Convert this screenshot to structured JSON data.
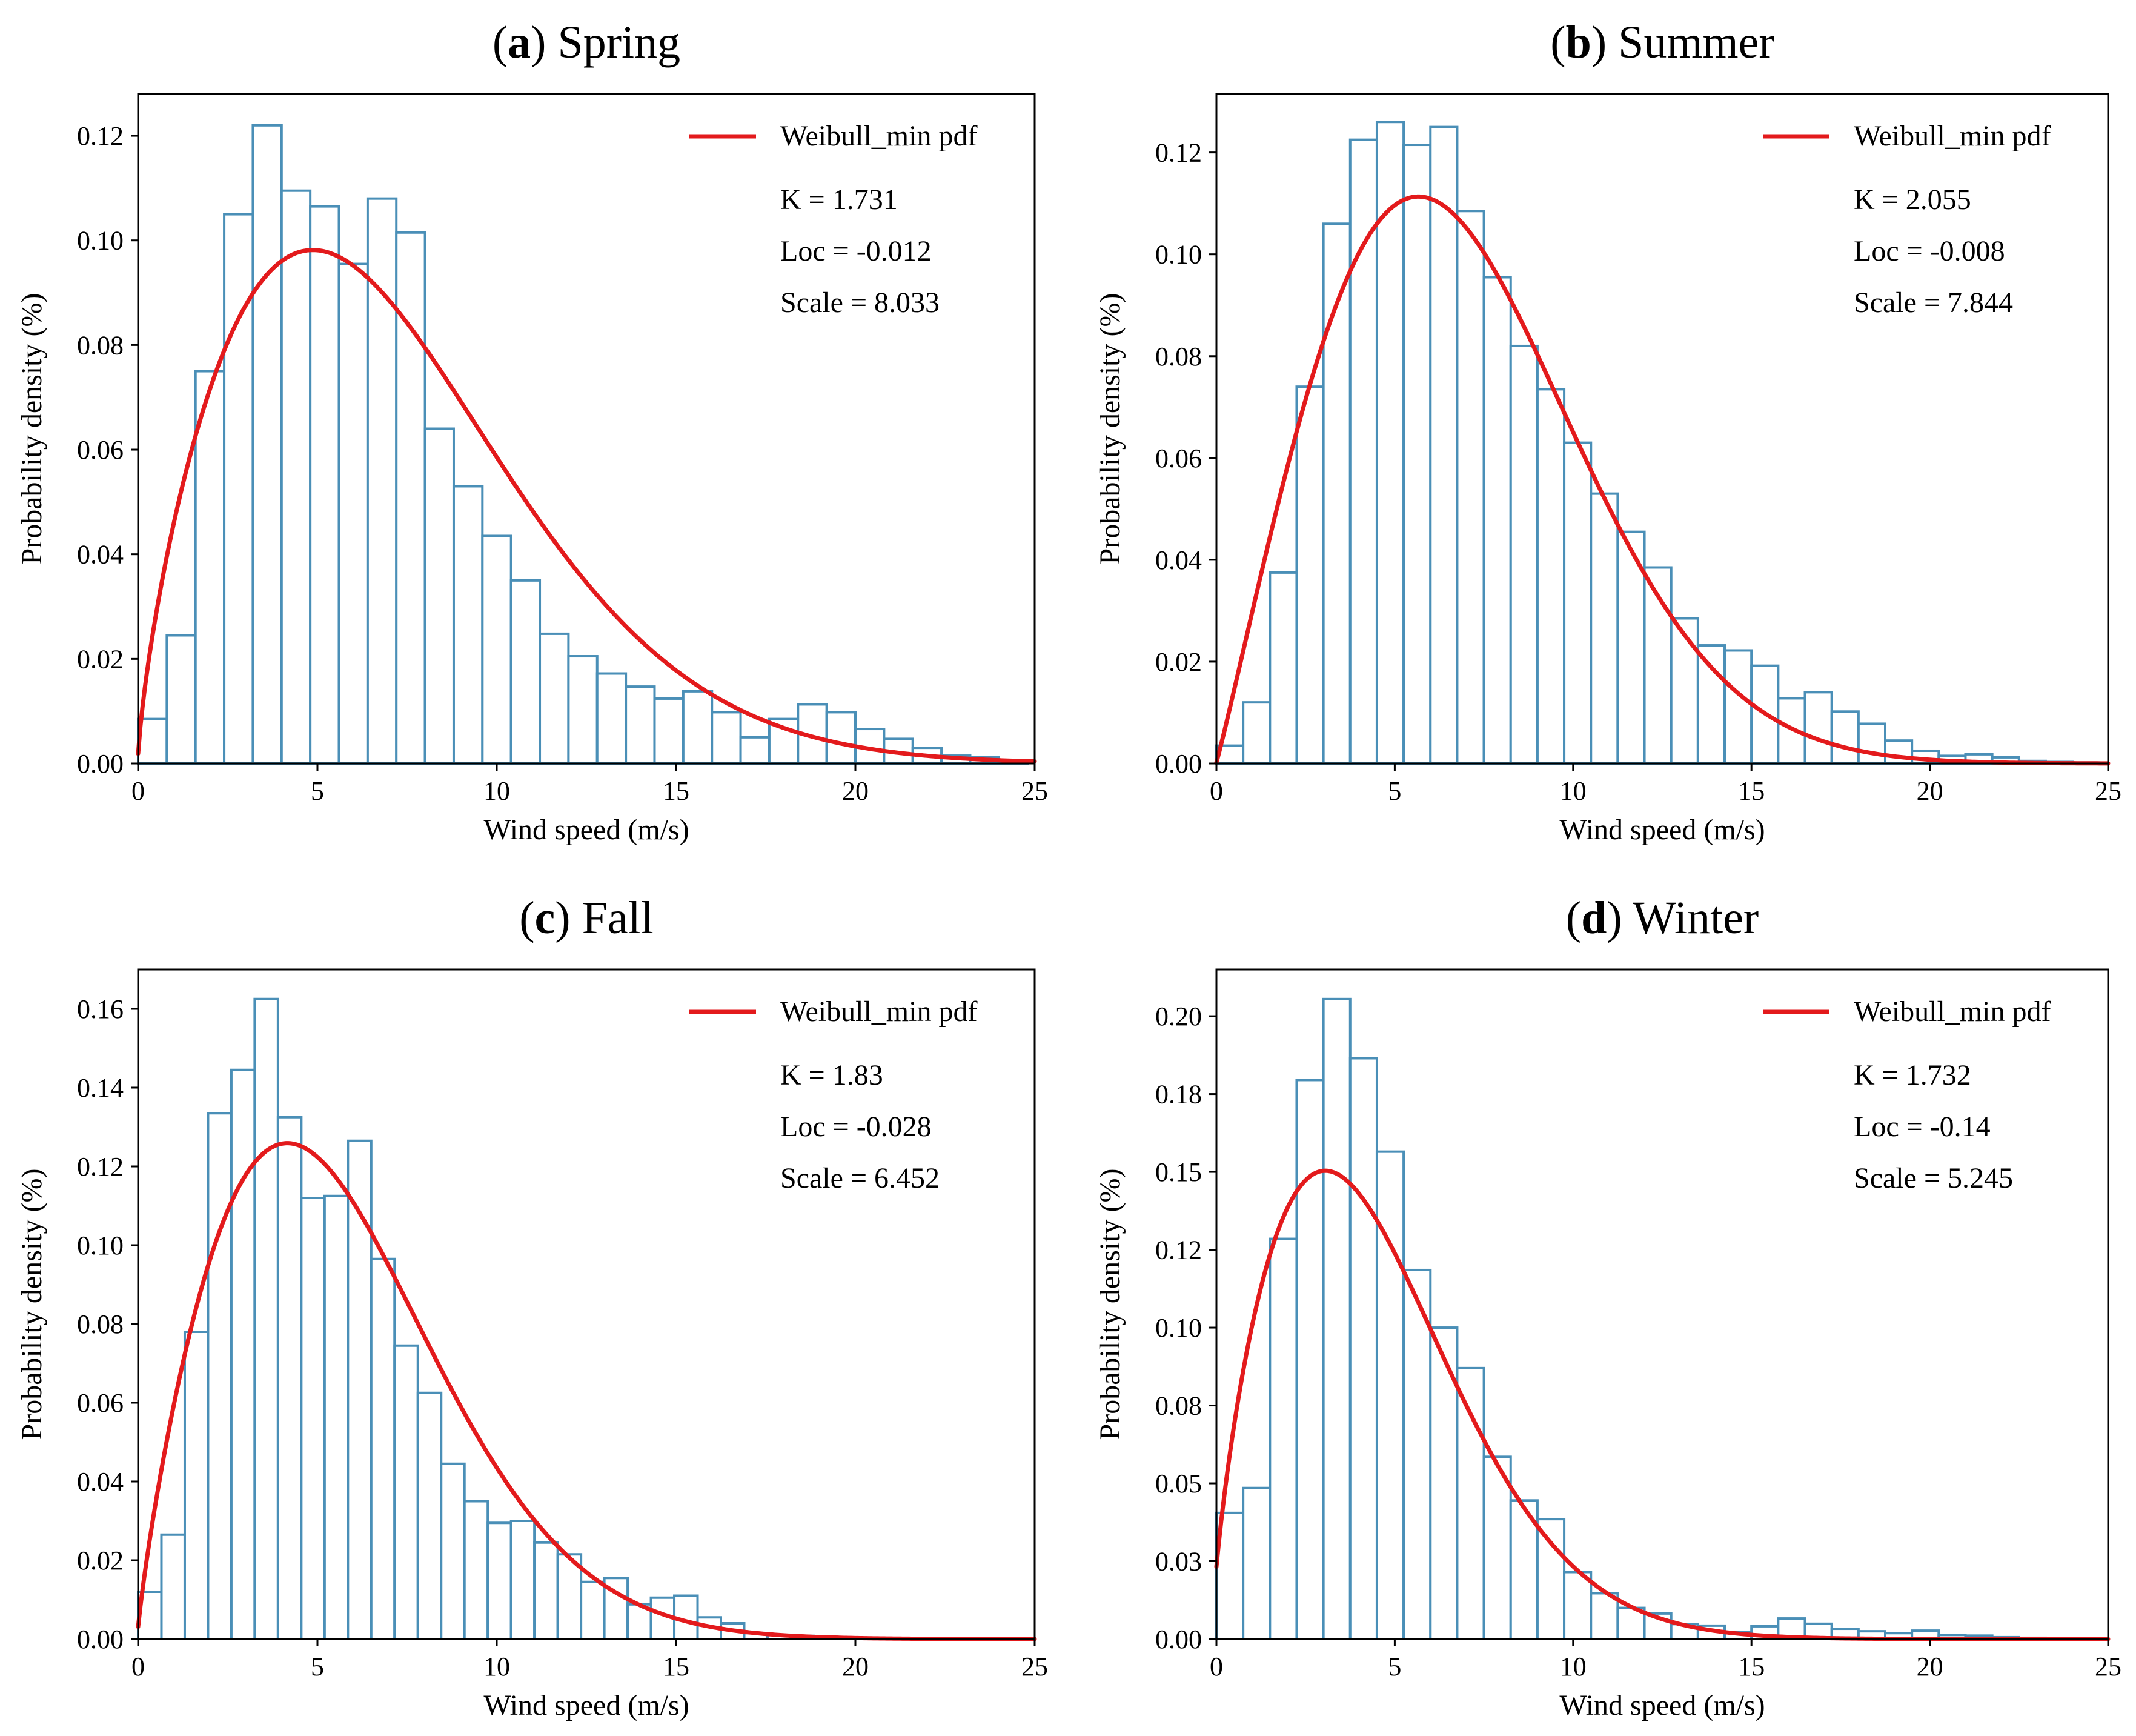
{
  "chart_data": [
    {
      "type": "bar",
      "title_letter": "a",
      "title_text": "Spring",
      "xlabel": "Wind speed (m/s)",
      "ylabel": "Probability density (%)",
      "xlim": [
        0,
        25
      ],
      "ylim": [
        0,
        0.128
      ],
      "xticks": [
        0,
        5,
        10,
        15,
        20,
        25
      ],
      "yticks": [
        0.0,
        0.02,
        0.04,
        0.06,
        0.08,
        0.1,
        0.12
      ],
      "ytick_labels": [
        "0.00",
        "0.02",
        "0.04",
        "0.06",
        "0.08",
        "0.10",
        "0.12"
      ],
      "grid": false,
      "legend": {
        "label": "Weibull_min pdf",
        "placement": "top-right"
      },
      "annotations": [
        "K = 1.731",
        "Loc = -0.012",
        "Scale = 8.033"
      ],
      "bin_start": 0,
      "bin_width": 0.8,
      "hist_values": [
        0.0085,
        0.0245,
        0.075,
        0.105,
        0.122,
        0.1095,
        0.1065,
        0.0955,
        0.108,
        0.1015,
        0.064,
        0.053,
        0.0435,
        0.035,
        0.0248,
        0.0205,
        0.0172,
        0.0147,
        0.0124,
        0.0138,
        0.0098,
        0.005,
        0.0085,
        0.0113,
        0.0098,
        0.0066,
        0.0047,
        0.003,
        0.0015,
        0.0012,
        0.0005
      ],
      "weibull": {
        "k": 1.731,
        "loc": -0.012,
        "scale": 8.033
      }
    },
    {
      "type": "bar",
      "title_letter": "b",
      "title_text": "Summer",
      "xlabel": "Wind speed (m/s)",
      "ylabel": "Probability density (%)",
      "xlim": [
        0,
        25
      ],
      "ylim": [
        0,
        0.1315
      ],
      "xticks": [
        0,
        5,
        10,
        15,
        20,
        25
      ],
      "yticks": [
        0.0,
        0.02,
        0.04,
        0.06,
        0.08,
        0.1,
        0.12
      ],
      "ytick_labels": [
        "0.00",
        "0.02",
        "0.04",
        "0.06",
        "0.08",
        "0.10",
        "0.12"
      ],
      "grid": false,
      "legend": {
        "label": "Weibull_min pdf",
        "placement": "top-right"
      },
      "annotations": [
        "K = 2.055",
        "Loc = -0.008",
        "Scale = 7.844"
      ],
      "bin_start": 0,
      "bin_width": 0.75,
      "hist_values": [
        0.0035,
        0.012,
        0.0375,
        0.074,
        0.106,
        0.1225,
        0.126,
        0.1215,
        0.125,
        0.1085,
        0.0955,
        0.082,
        0.0735,
        0.063,
        0.053,
        0.0455,
        0.0385,
        0.0285,
        0.0232,
        0.0222,
        0.0192,
        0.0128,
        0.014,
        0.0102,
        0.0078,
        0.0045,
        0.0025,
        0.0015,
        0.0018,
        0.0012,
        0.0005,
        0.0003,
        0.0002
      ],
      "weibull": {
        "k": 2.055,
        "loc": -0.008,
        "scale": 7.844
      }
    },
    {
      "type": "bar",
      "title_letter": "c",
      "title_text": "Fall",
      "xlabel": "Wind speed (m/s)",
      "ylabel": "Probability density (%)",
      "xlim": [
        0,
        25
      ],
      "ylim": [
        0,
        0.17
      ],
      "xticks": [
        0,
        5,
        10,
        15,
        20,
        25
      ],
      "yticks": [
        0.0,
        0.02,
        0.04,
        0.06,
        0.08,
        0.1,
        0.12,
        0.14,
        0.16
      ],
      "ytick_labels": [
        "0.00",
        "0.02",
        "0.04",
        "0.06",
        "0.08",
        "0.10",
        "0.12",
        "0.14",
        "0.16"
      ],
      "grid": false,
      "legend": {
        "label": "Weibull_min pdf",
        "placement": "top-right"
      },
      "annotations": [
        "K = 1.83",
        "Loc = -0.028",
        "Scale = 6.452"
      ],
      "bin_start": 0,
      "bin_width": 0.65,
      "hist_values": [
        0.012,
        0.0265,
        0.078,
        0.1335,
        0.1445,
        0.1625,
        0.1325,
        0.112,
        0.1125,
        0.1265,
        0.0965,
        0.0745,
        0.0625,
        0.0445,
        0.035,
        0.0295,
        0.03,
        0.0245,
        0.0215,
        0.0145,
        0.0155,
        0.0088,
        0.0105,
        0.011,
        0.0055,
        0.004,
        0.0015,
        0.001,
        0.0008,
        0.0006,
        0.0004,
        0.0003,
        0.0002
      ],
      "weibull": {
        "k": 1.83,
        "loc": -0.028,
        "scale": 6.452
      }
    },
    {
      "type": "bar",
      "title_letter": "d",
      "title_text": "Winter",
      "xlabel": "Wind speed (m/s)",
      "ylabel": "Probability density (%)",
      "xlim": [
        0,
        25
      ],
      "ylim": [
        0,
        0.215
      ],
      "xticks": [
        0,
        5,
        10,
        15,
        20,
        25
      ],
      "yticks": [
        0.0,
        0.025,
        0.05,
        0.075,
        0.1,
        0.125,
        0.15,
        0.175,
        0.2
      ],
      "ytick_labels": [
        "0.00",
        "0.03",
        "0.05",
        "0.08",
        "0.10",
        "0.12",
        "0.15",
        "0.18",
        "0.20"
      ],
      "grid": false,
      "legend": {
        "label": "Weibull_min pdf",
        "placement": "top-right"
      },
      "annotations": [
        "K = 1.732",
        "Loc = -0.14",
        "Scale = 5.245"
      ],
      "bin_start": 0,
      "bin_width": 0.75,
      "hist_values": [
        0.0405,
        0.0485,
        0.1285,
        0.1795,
        0.2055,
        0.1865,
        0.1565,
        0.1185,
        0.1,
        0.087,
        0.0585,
        0.0445,
        0.0385,
        0.0215,
        0.0147,
        0.01,
        0.0082,
        0.0048,
        0.0043,
        0.0023,
        0.0041,
        0.0066,
        0.0049,
        0.0033,
        0.0025,
        0.0019,
        0.0027,
        0.0013,
        0.0011,
        0.0006,
        0.0004,
        0.0003,
        0.0002
      ],
      "weibull": {
        "k": 1.732,
        "loc": -0.14,
        "scale": 5.245
      }
    }
  ]
}
